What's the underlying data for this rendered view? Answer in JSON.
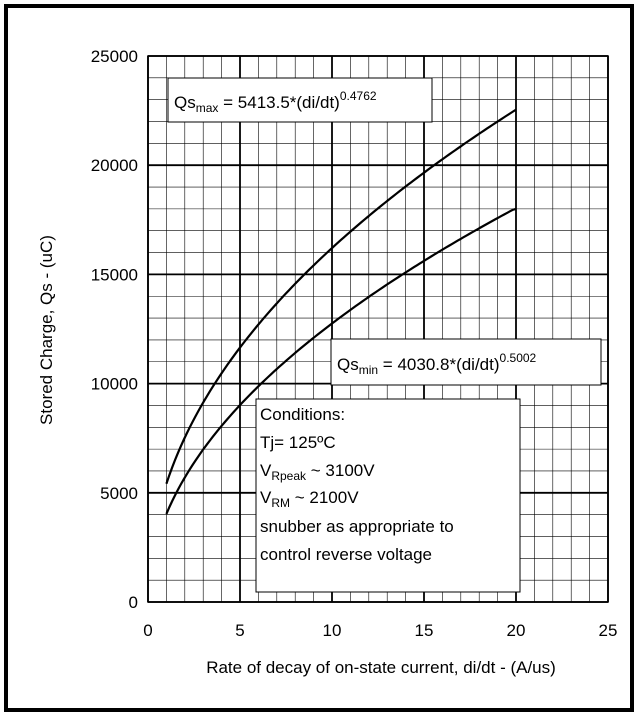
{
  "chart_data": {
    "type": "line",
    "xlabel": "Rate of decay of on-state current, di/dt - (A/us)",
    "ylabel": "Stored Charge, Qs - (uC)",
    "xlim": [
      0,
      25
    ],
    "ylim": [
      0,
      25000
    ],
    "x_ticks": [
      "0",
      "5",
      "10",
      "15",
      "20",
      "25"
    ],
    "y_ticks": [
      "0",
      "5000",
      "10000",
      "15000",
      "20000",
      "25000"
    ],
    "major_grid": true,
    "minor_grid": true,
    "series": [
      {
        "x": [
          1,
          2,
          3,
          4,
          5,
          6,
          7,
          8,
          9,
          10,
          11,
          12,
          13,
          14,
          15,
          16,
          17,
          18,
          19,
          20
        ],
        "values": [
          5413.5,
          7536,
          9155,
          10491,
          11695,
          12782,
          13775,
          14694,
          15553,
          16362,
          17128,
          17856,
          18552,
          19219,
          19861,
          20480,
          21077,
          21654,
          22214,
          22600
        ],
        "coef": 5413.5,
        "exponent": 0.4762
      },
      {
        "x": [
          1,
          2,
          3,
          4,
          5,
          6,
          7,
          8,
          9,
          10,
          11,
          12,
          13,
          14,
          15,
          16,
          17,
          18,
          19,
          20
        ],
        "values": [
          4030.8,
          5702,
          6985,
          8066,
          9017,
          9877,
          10669,
          11406,
          12098,
          12753,
          13375,
          13970,
          14540,
          15088,
          15617,
          16128,
          16623,
          17103,
          17569,
          18000
        ],
        "coef": 4030.8,
        "exponent": 0.5002
      }
    ],
    "annotations": {
      "qs_max": {
        "base": "Qs",
        "sub": "max",
        "expr": " = 5413.5*(di/dt)",
        "sup": "0.4762"
      },
      "qs_min": {
        "base": "Qs",
        "sub": "min",
        "expr": " = 4030.8*(di/dt)",
        "sup": "0.5002"
      },
      "conditions": {
        "title": "Conditions:",
        "tj": "Tj= 125ºC",
        "vrpeak_base": "V",
        "vrpeak_sub": "Rpeak",
        "vrpeak_rest": " ~ 3100V",
        "vrm_base": "V",
        "vrm_sub": "RM",
        "vrm_rest": " ~ 2100V",
        "line5": "snubber as appropriate to",
        "line6": "control reverse voltage"
      }
    }
  }
}
